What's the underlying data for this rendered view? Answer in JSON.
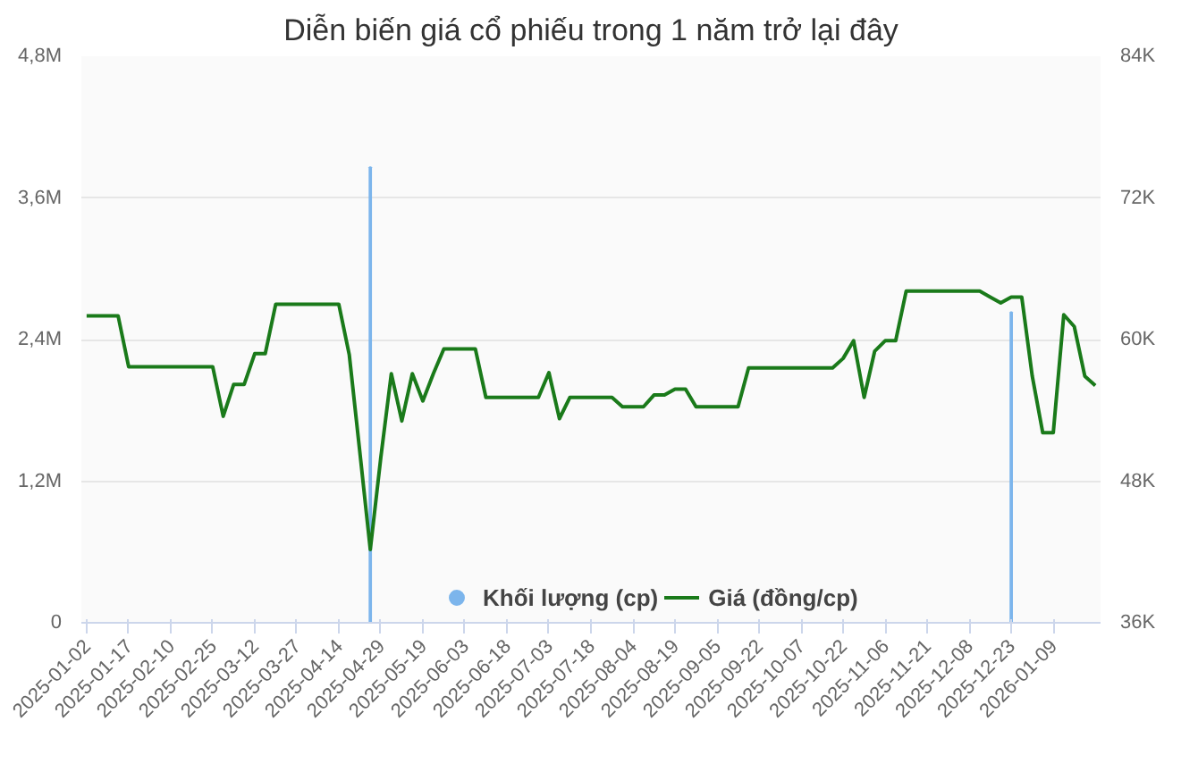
{
  "chart_data": {
    "type": "line",
    "title": "Diễn biến giá cổ phiếu trong 1 năm trở lại đây",
    "categories": [
      "2025-01-02",
      null,
      null,
      null,
      "2025-01-17",
      null,
      null,
      null,
      "2025-02-10",
      null,
      null,
      null,
      "2025-02-25",
      null,
      null,
      null,
      "2025-03-12",
      null,
      null,
      null,
      "2025-03-27",
      null,
      null,
      null,
      "2025-04-14",
      null,
      null,
      null,
      "2025-04-29",
      null,
      null,
      null,
      "2025-05-19",
      null,
      null,
      null,
      "2025-06-03",
      null,
      null,
      null,
      "2025-06-18",
      null,
      null,
      null,
      "2025-07-03",
      null,
      null,
      null,
      "2025-07-18",
      null,
      null,
      null,
      "2025-08-04",
      null,
      null,
      null,
      "2025-08-19",
      null,
      null,
      null,
      "2025-09-05",
      null,
      null,
      null,
      "2025-09-22",
      null,
      null,
      null,
      "2025-10-07",
      null,
      null,
      null,
      "2025-10-22",
      null,
      null,
      null,
      "2025-11-06",
      null,
      null,
      null,
      "2025-11-21",
      null,
      null,
      null,
      "2025-12-08",
      null,
      null,
      null,
      "2025-12-23",
      null,
      null,
      null,
      "2026-01-09",
      null,
      null,
      null,
      null
    ],
    "series": [
      {
        "name": "Khối lượng (cp)",
        "type": "bar",
        "axis": "y",
        "color": "#7cb5ec",
        "values": [
          null,
          null,
          null,
          null,
          null,
          null,
          null,
          null,
          null,
          null,
          null,
          null,
          null,
          null,
          null,
          null,
          null,
          null,
          null,
          null,
          null,
          null,
          null,
          null,
          null,
          null,
          null,
          3860000,
          null,
          null,
          null,
          null,
          null,
          null,
          null,
          null,
          null,
          null,
          null,
          null,
          null,
          null,
          null,
          null,
          null,
          null,
          null,
          null,
          null,
          null,
          null,
          null,
          null,
          null,
          null,
          null,
          null,
          null,
          null,
          null,
          null,
          null,
          null,
          null,
          null,
          null,
          null,
          null,
          null,
          null,
          null,
          null,
          null,
          null,
          null,
          null,
          null,
          null,
          null,
          null,
          null,
          null,
          null,
          null,
          null,
          null,
          null,
          null,
          2630000,
          null,
          null,
          null,
          null,
          null,
          null,
          null,
          null
        ]
      },
      {
        "name": "Giá (đồng/cp)",
        "type": "line",
        "axis": "y2",
        "color": "#1a7a1a",
        "values": [
          62000.0,
          62000.0,
          62000.0,
          62000.0,
          57700.0,
          57700.0,
          57700.0,
          57700.0,
          57700.0,
          57700.0,
          57700.0,
          57700.0,
          57700.0,
          53500.0,
          56200.0,
          56200.0,
          58800.0,
          58800.0,
          63000.0,
          63000.0,
          63000.0,
          63000.0,
          63000.0,
          63000.0,
          63000.0,
          58700.0,
          50500.0,
          42200.0,
          50000.0,
          57100.0,
          53100.0,
          57100.0,
          54800.0,
          57100.0,
          59200.0,
          59200.0,
          59200.0,
          59200.0,
          55100.0,
          55100.0,
          55100.0,
          55100.0,
          55100.0,
          55100.0,
          57200.0,
          53300.0,
          55100.0,
          55100.0,
          55100.0,
          55100.0,
          55100.0,
          54300.0,
          54300.0,
          54300.0,
          55300.0,
          55300.0,
          55800.0,
          55800.0,
          54300.0,
          54300.0,
          54300.0,
          54300.0,
          54300.0,
          57600.0,
          57600.0,
          57600.0,
          57600.0,
          57600.0,
          57600.0,
          57600.0,
          57600.0,
          57600.0,
          58400.0,
          59900.0,
          55100.0,
          59000.0,
          59900.0,
          59900.0,
          64100.0,
          64100.0,
          64100.0,
          64100.0,
          64100.0,
          64100.0,
          64100.0,
          64100.0,
          63600.0,
          63100.0,
          63600.0,
          63600.0,
          56900.0,
          52100.0,
          52100.0,
          62100.0,
          61100.0,
          56900.0,
          56100.0
        ]
      }
    ],
    "ylim": [
      0,
      4800000
    ],
    "yticks": [
      {
        "value": 0,
        "label": "0"
      },
      {
        "value": 1200000,
        "label": "1,2M"
      },
      {
        "value": 2400000,
        "label": "2,4M"
      },
      {
        "value": 3600000,
        "label": "3,6M"
      },
      {
        "value": 4800000,
        "label": "4,8M"
      }
    ],
    "y2lim": [
      36000,
      84000
    ],
    "y2ticks": [
      {
        "value": 36000,
        "label": "36K"
      },
      {
        "value": 48000,
        "label": "48K"
      },
      {
        "value": 60000,
        "label": "60K"
      },
      {
        "value": 72000,
        "label": "72K"
      },
      {
        "value": 84000,
        "label": "84K"
      }
    ],
    "grid": "y",
    "legend": "bottom"
  }
}
